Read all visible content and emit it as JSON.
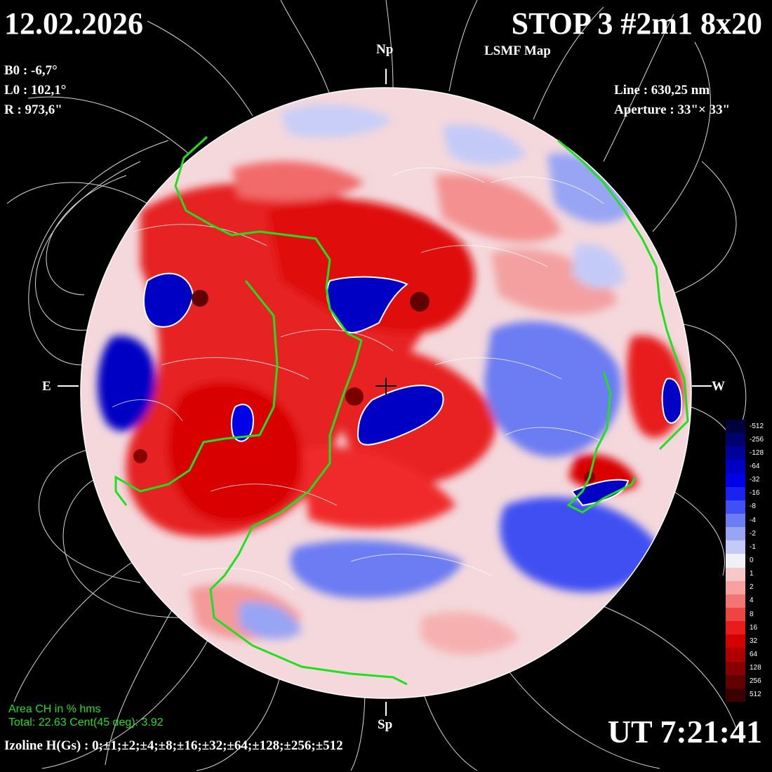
{
  "header": {
    "date": "12.02.2026",
    "title": "STOP 3 #2m1 8x20",
    "subtitle": "LSMF  Map"
  },
  "params": {
    "b0": "B0 : -6,7°",
    "l0": "L0 : 102,1°",
    "r": "R  : 973,6\""
  },
  "instrument": {
    "line": "Line :  630,25 nm",
    "aperture": "Aperture : 33\"× 33\""
  },
  "directions": {
    "north": "Np",
    "south": "Sp",
    "east": "E",
    "west": "W"
  },
  "coronal_hole": {
    "title": "Area CH in % hms",
    "values": "Total: 22.63    Cent(45 deg): 3.92"
  },
  "time": "UT 7:21:41",
  "izoline": "Izoline H(Gs) : 0;±1;±2;±4;±8;±16;±32;±64;±128;±256;±512",
  "colorbar": {
    "levels": [
      {
        "label": "-512",
        "color": "#00003c"
      },
      {
        "label": "-256",
        "color": "#000070"
      },
      {
        "label": "-128",
        "color": "#00009a"
      },
      {
        "label": "-64",
        "color": "#0000c4"
      },
      {
        "label": "-32",
        "color": "#0000e6"
      },
      {
        "label": "-16",
        "color": "#1a22f2"
      },
      {
        "label": "-8",
        "color": "#4050f2"
      },
      {
        "label": "-4",
        "color": "#6c7cf2"
      },
      {
        "label": "-2",
        "color": "#98a4f4"
      },
      {
        "label": "-1",
        "color": "#c4caf8"
      },
      {
        "label": "0",
        "color": "#f0f0f8"
      },
      {
        "label": "1",
        "color": "#f8c8c8"
      },
      {
        "label": "2",
        "color": "#f6a0a0"
      },
      {
        "label": "4",
        "color": "#f27474"
      },
      {
        "label": "8",
        "color": "#ee4444"
      },
      {
        "label": "16",
        "color": "#e81c1c"
      },
      {
        "label": "32",
        "color": "#d60000"
      },
      {
        "label": "64",
        "color": "#b00000"
      },
      {
        "label": "128",
        "color": "#880000"
      },
      {
        "label": "256",
        "color": "#600000"
      },
      {
        "label": "512",
        "color": "#3c0000"
      }
    ]
  },
  "colors": {
    "positive": "#e81c1c",
    "negative": "#0000e6",
    "neutral": "#f0f0f8",
    "coronal_hole_boundary": "#1fe01f"
  }
}
